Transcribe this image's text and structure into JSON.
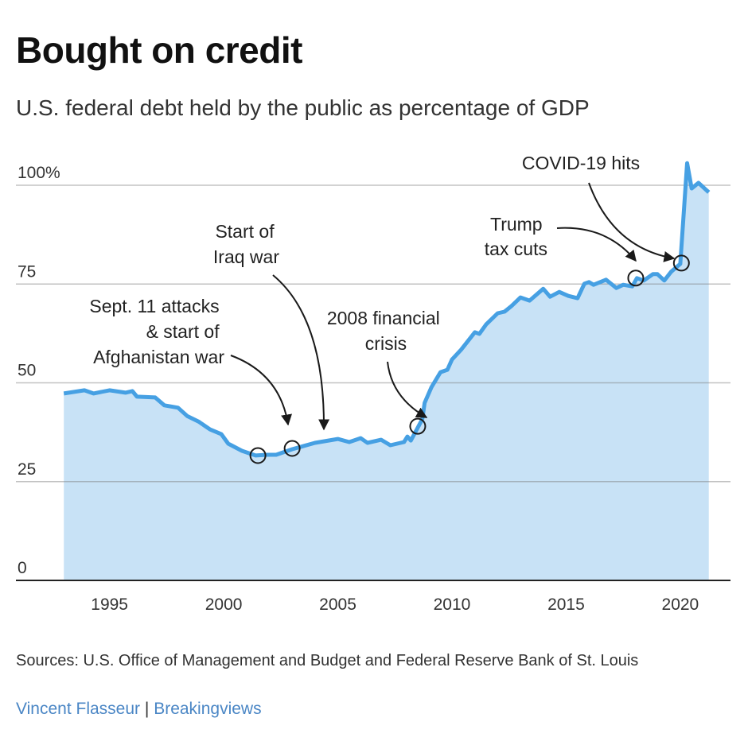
{
  "title": "Bought on credit",
  "subtitle": "U.S. federal debt held by the public as percentage of GDP",
  "chart_data": {
    "type": "area",
    "xlim": [
      1990.9,
      2022.2
    ],
    "ylim": [
      0,
      100
    ],
    "x_ticks": [
      1995,
      2000,
      2005,
      2010,
      2015,
      2020
    ],
    "y_ticks": [
      0,
      25,
      50,
      75,
      100
    ],
    "y_tick_labels": [
      "0",
      "25",
      "50",
      "75",
      "100%"
    ],
    "grid": true,
    "line_color": "#46a0e3",
    "fill_color": "#c8e2f6",
    "series": [
      {
        "x": [
          1993.0,
          1993.9,
          1994.3,
          1995.0,
          1995.7,
          1996.0,
          1996.2,
          1997.0,
          1997.4,
          1998.0,
          1998.4,
          1998.9,
          1999.4,
          1999.9,
          2000.2,
          2000.8,
          2001.4,
          2001.9,
          2002.3,
          2003.0,
          2004.0,
          2005.0,
          2005.5,
          2006.0,
          2006.3,
          2006.9,
          2007.3,
          2007.9,
          2008.05,
          2008.2,
          2008.7,
          2008.8,
          2009.1,
          2009.5,
          2009.8,
          2010.0,
          2010.4,
          2011.0,
          2011.2,
          2011.5,
          2012.0,
          2012.3,
          2012.6,
          2013.0,
          2013.4,
          2014.0,
          2014.3,
          2014.7,
          2015.1,
          2015.5,
          2015.8,
          2016.0,
          2016.2,
          2016.75,
          2017.2,
          2017.5,
          2017.9,
          2018.1,
          2018.4,
          2018.8,
          2019.0,
          2019.3,
          2019.6,
          2020.0,
          2020.3,
          2020.5,
          2020.8,
          2021.25
        ],
        "values": [
          47.3,
          48.1,
          47.3,
          48.1,
          47.5,
          47.9,
          46.5,
          46.3,
          44.3,
          43.7,
          41.6,
          40.2,
          38.2,
          37.0,
          34.6,
          32.8,
          31.6,
          31.8,
          31.8,
          33.2,
          34.8,
          35.8,
          35.0,
          36.0,
          34.8,
          35.6,
          34.2,
          35.0,
          36.4,
          35.4,
          40.8,
          44.9,
          48.9,
          52.7,
          53.3,
          55.9,
          58.4,
          62.8,
          62.4,
          64.8,
          67.6,
          68.0,
          69.4,
          71.6,
          70.8,
          73.8,
          71.8,
          73.0,
          72.0,
          71.4,
          75.1,
          75.5,
          74.8,
          76.1,
          74.0,
          74.8,
          74.4,
          76.5,
          75.9,
          77.5,
          77.5,
          75.9,
          78.1,
          80.1,
          105.6,
          99.2,
          100.6,
          98.2
        ]
      }
    ],
    "annotations": [
      {
        "lines": [
          "Sept. 11 attacks",
          "& start of",
          "Afghanistan war"
        ],
        "x": 2001.5,
        "y": 31.6
      },
      {
        "lines": [
          "Start of",
          "Iraq war"
        ],
        "x": 2003.0,
        "y": 33.4
      },
      {
        "lines": [
          "2008 financial",
          "crisis"
        ],
        "x": 2008.5,
        "y": 39.0
      },
      {
        "lines": [
          "Trump",
          "tax cuts"
        ],
        "x": 2018.05,
        "y": 76.5
      },
      {
        "lines": [
          "COVID-19 hits"
        ],
        "x": 2020.05,
        "y": 80.3
      }
    ]
  },
  "footer": {
    "sources": "Sources: U.S. Office of Management and Budget and Federal Reserve Bank of St. Louis",
    "author": "Vincent Flasseur",
    "separator": "|",
    "outlet": "Breakingviews"
  }
}
